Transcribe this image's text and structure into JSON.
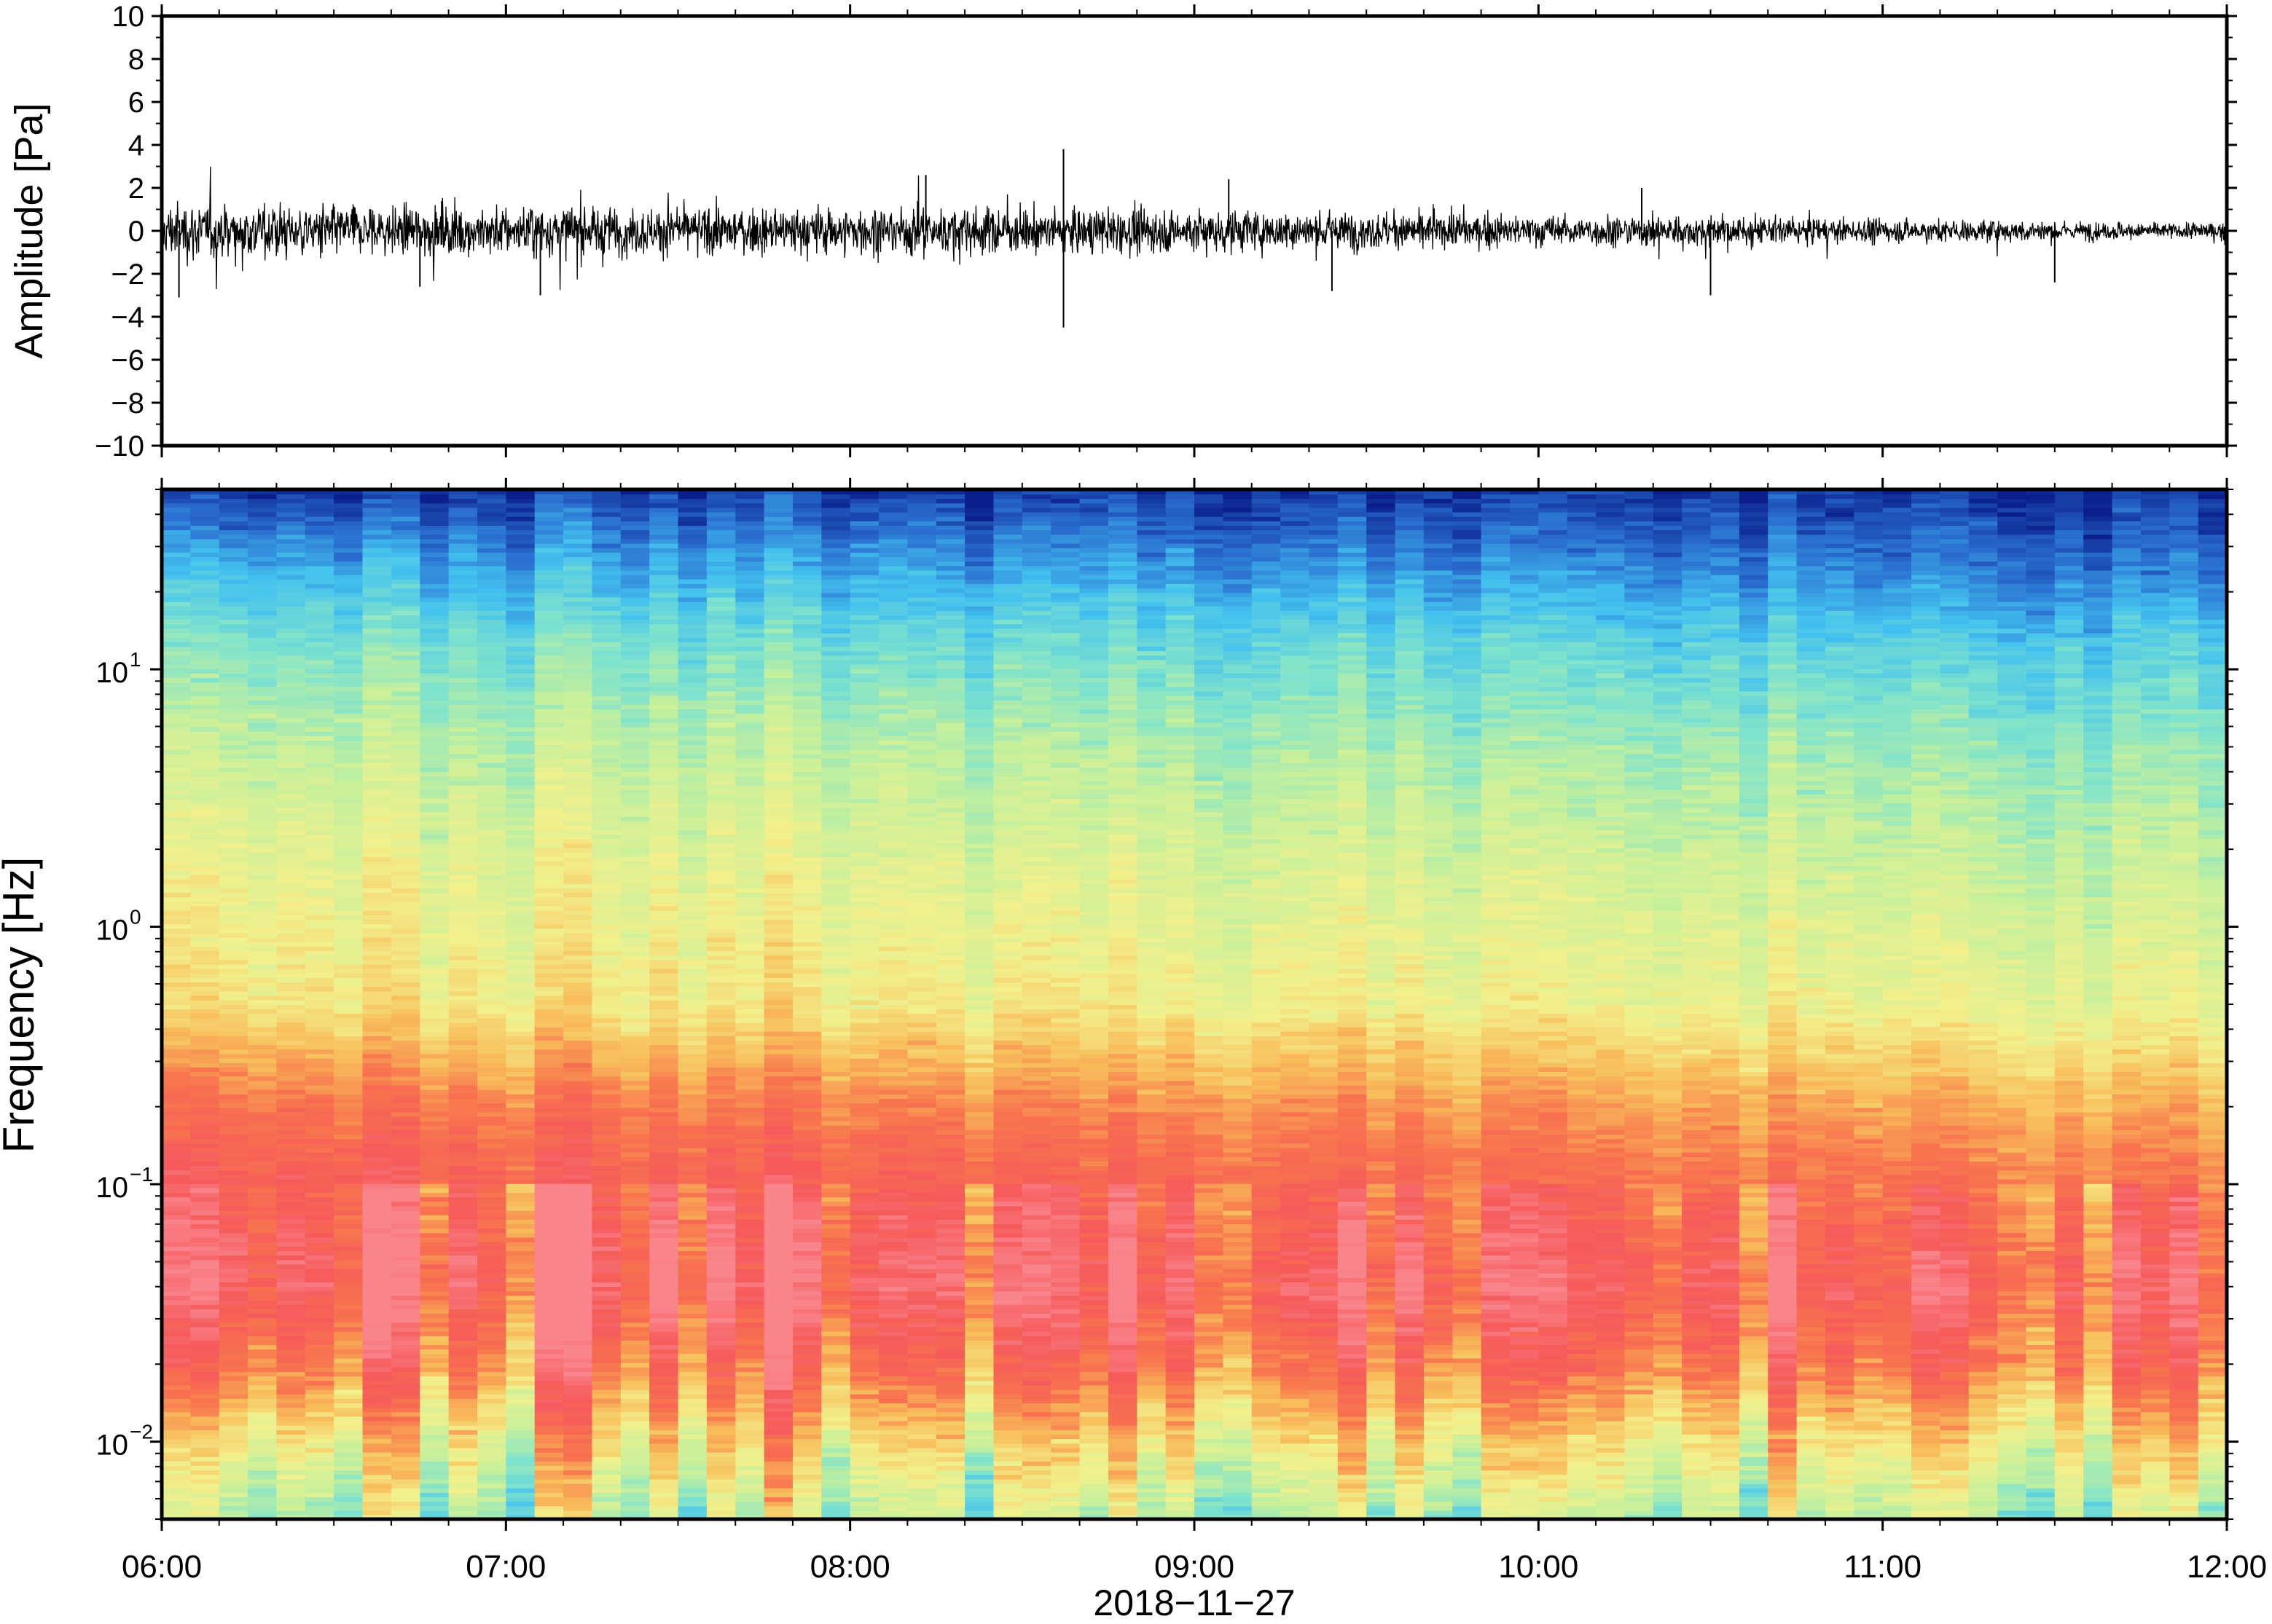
{
  "chart_data": [
    {
      "type": "line",
      "ylabel": "Amplitude [Pa]",
      "ylim": [
        -10,
        10
      ],
      "yticks": [
        10,
        8,
        6,
        4,
        2,
        0,
        -2,
        -4,
        -6,
        -8,
        -10
      ],
      "ytick_labels": [
        "10",
        "8",
        "6",
        "4",
        "2",
        "0",
        "−2",
        "−4",
        "−6",
        "−8",
        "−10"
      ],
      "x_range": [
        "2018-11-27 06:00",
        "2018-11-27 12:00"
      ],
      "series": [
        {
          "color": "#000000",
          "envelope_hours": [
            6.0,
            6.25,
            6.5,
            6.75,
            7.0,
            7.25,
            7.5,
            7.75,
            8.0,
            8.25,
            8.5,
            8.62,
            8.75,
            9.0,
            9.25,
            9.5,
            9.75,
            10.0,
            10.25,
            10.5,
            10.75,
            11.0,
            11.25,
            11.5,
            11.75,
            12.0
          ],
          "envelope_pa": [
            2.0,
            2.0,
            1.8,
            1.7,
            1.8,
            1.8,
            1.6,
            1.6,
            1.7,
            1.7,
            1.6,
            1.6,
            1.5,
            1.6,
            1.4,
            1.3,
            1.2,
            1.1,
            1.1,
            1.1,
            0.9,
            0.8,
            0.8,
            0.7,
            0.6,
            0.6
          ],
          "peaks": [
            {
              "hour": 6.05,
              "value": -3.1
            },
            {
              "hour": 6.75,
              "value": -2.6
            },
            {
              "hour": 7.1,
              "value": -3.0
            },
            {
              "hour": 8.22,
              "value": 2.6
            },
            {
              "hour": 8.62,
              "value": 3.8
            },
            {
              "hour": 8.62,
              "value": -4.5
            },
            {
              "hour": 9.1,
              "value": 2.4
            },
            {
              "hour": 9.4,
              "value": -2.8
            },
            {
              "hour": 10.3,
              "value": 2.0
            },
            {
              "hour": 10.5,
              "value": -3.0
            },
            {
              "hour": 11.5,
              "value": -2.4
            }
          ]
        }
      ]
    },
    {
      "type": "heatmap",
      "ylabel": "Frequency [Hz]",
      "xlabel": "2018−11−27",
      "yscale": "log",
      "ylim": [
        0.005,
        50
      ],
      "yticks": [
        {
          "value": 10,
          "base": "10",
          "exp": "1"
        },
        {
          "value": 1,
          "base": "10",
          "exp": "0"
        },
        {
          "value": 0.1,
          "base": "10",
          "exp": "−1"
        },
        {
          "value": 0.01,
          "base": "10",
          "exp": "−2"
        }
      ],
      "x_range": [
        "2018-11-27 06:00",
        "2018-11-27 12:00"
      ],
      "xticks": [
        "06:00",
        "07:00",
        "08:00",
        "09:00",
        "10:00",
        "11:00",
        "12:00"
      ],
      "colormap": [
        "#0a1e8c",
        "#2a6fd0",
        "#43c1ef",
        "#7fe3cc",
        "#c8f09a",
        "#f2f08c",
        "#f8bd5a",
        "#f8744e",
        "#f65a5a",
        "#f9848c"
      ],
      "band_profile": {
        "log10_hz": [
          -2.3,
          -2.0,
          -1.7,
          -1.4,
          -1.1,
          -0.7,
          -0.3,
          0.2,
          0.7,
          1.1,
          1.4,
          1.7
        ],
        "level_start": [
          0.45,
          0.62,
          0.83,
          0.97,
          0.93,
          0.81,
          0.6,
          0.55,
          0.46,
          0.35,
          0.22,
          0.05
        ],
        "level_end": [
          0.42,
          0.58,
          0.78,
          0.87,
          0.8,
          0.68,
          0.52,
          0.45,
          0.36,
          0.25,
          0.12,
          0.02
        ]
      }
    }
  ]
}
